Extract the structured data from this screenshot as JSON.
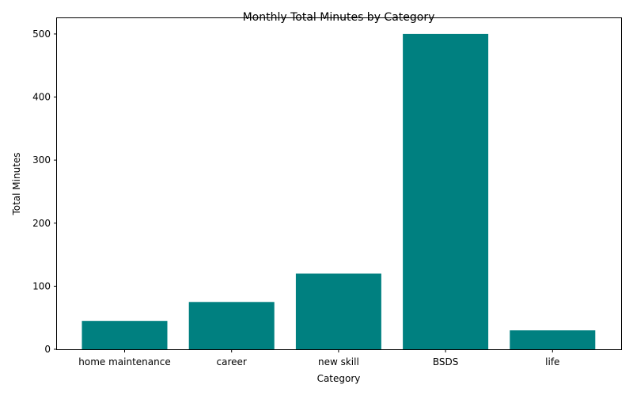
{
  "chart_data": {
    "type": "bar",
    "title": "Monthly Total Minutes by Category",
    "xlabel": "Category",
    "ylabel": "Total Minutes",
    "categories": [
      "home maintenance",
      "career",
      "new skill",
      "BSDS",
      "life"
    ],
    "values": [
      45,
      75,
      120,
      500,
      30
    ],
    "ylim": [
      0,
      525
    ],
    "yticks": [
      0,
      100,
      200,
      300,
      400,
      500
    ],
    "grid": false,
    "bar_color": "#008080"
  }
}
